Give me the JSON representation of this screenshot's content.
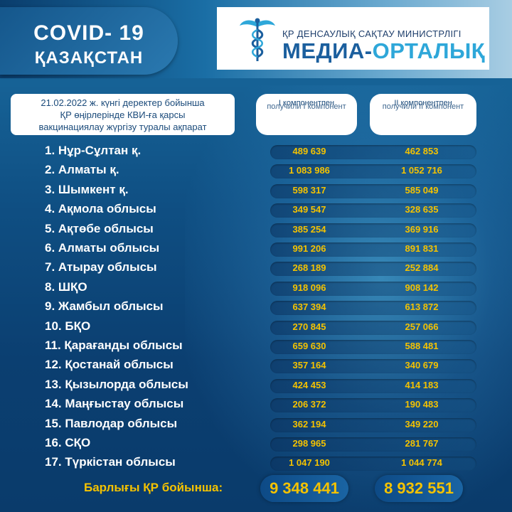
{
  "header": {
    "title_line1": "COVID- 19",
    "title_line2": "ҚАЗАҚСТАН"
  },
  "logo": {
    "line1": "ҚР ДЕНСАУЛЫҚ САҚТАУ МИНИСТРЛІГІ",
    "line2_a": "МЕДИА-",
    "line2_b": "ОРТАЛЫҚ",
    "icon": "caduceus-icon",
    "colors": {
      "dark_blue": "#1b5f9e",
      "light_blue": "#2ea7d9"
    }
  },
  "info": {
    "line1": "21.02.2022 ж. күнгі деректер бойынша",
    "line2": "ҚР өңірлерінде КВИ-ға қарсы",
    "line3": "вакцинациялау жүргізу туралы ақпарат"
  },
  "columns": [
    {
      "a": "I компонентпен",
      "b": "получили I компонент"
    },
    {
      "a": "II компонентпен",
      "b": "получили II компонент"
    }
  ],
  "rows": [
    {
      "name": "1. Нұр-Сұлтан қ.",
      "v1": "489 639",
      "v2": "462 853"
    },
    {
      "name": "2. Алматы қ.",
      "v1": "1 083 986",
      "v2": "1 052 716"
    },
    {
      "name": "3. Шымкент қ.",
      "v1": "598 317",
      "v2": "585 049"
    },
    {
      "name": "4. Ақмола облысы",
      "v1": "349 547",
      "v2": "328 635"
    },
    {
      "name": "5. Ақтөбе облысы",
      "v1": "385 254",
      "v2": "369 916"
    },
    {
      "name": "6. Алматы облысы",
      "v1": "991 206",
      "v2": "891 831"
    },
    {
      "name": "7. Атырау облысы",
      "v1": "268 189",
      "v2": "252 884"
    },
    {
      "name": "8. ШҚО",
      "v1": "918 096",
      "v2": "908 142"
    },
    {
      "name": "9. Жамбыл облысы",
      "v1": "637 394",
      "v2": "613 872"
    },
    {
      "name": "10. БҚО",
      "v1": "270 845",
      "v2": "257 066"
    },
    {
      "name": "11. Қарағанды облысы",
      "v1": "659 630",
      "v2": "588 481"
    },
    {
      "name": "12. Қостанай облысы",
      "v1": "357 164",
      "v2": "340 679"
    },
    {
      "name": "13. Қызылорда облысы",
      "v1": "424 453",
      "v2": "414 183"
    },
    {
      "name": "14. Маңғыстау облысы",
      "v1": "206 372",
      "v2": "190 483"
    },
    {
      "name": "15. Павлодар облысы",
      "v1": "362 194",
      "v2": "349 220"
    },
    {
      "name": "16. СҚО",
      "v1": "298 965",
      "v2": "281 767"
    },
    {
      "name": "17. Түркістан облысы",
      "v1": "1 047 190",
      "v2": "1 044 774"
    }
  ],
  "totals": {
    "label": "Барлығы ҚР бойынша:",
    "v1": "9 348 441",
    "v2": "8 932 551"
  },
  "colors": {
    "accent_yellow": "#f4c200",
    "background_blue": "#0f4f83"
  }
}
